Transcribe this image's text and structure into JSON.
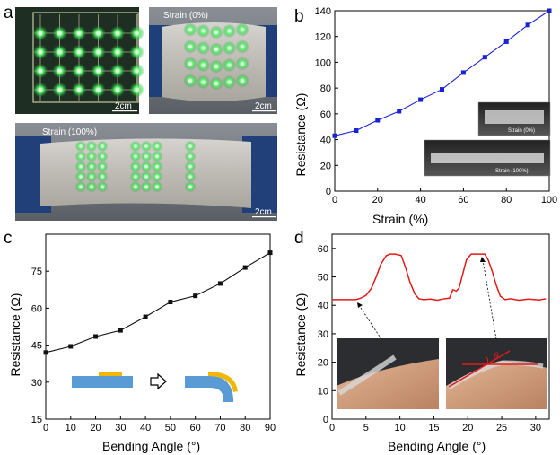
{
  "panels": {
    "a": {
      "label": "a",
      "photo1": {
        "scale_label": "2cm"
      },
      "photo2": {
        "strain_label": "Strain (0%)",
        "scale_label": "2cm"
      },
      "photo3": {
        "strain_label": "Strain (100%)",
        "scale_label": "2cm"
      }
    },
    "b": {
      "label": "b",
      "inset_top_label": "Strain (0%)",
      "inset_bottom_label": "Strain (100%)"
    },
    "c": {
      "label": "c"
    },
    "d": {
      "label": "d",
      "angle_symbol": "θ"
    }
  },
  "colors": {
    "b_series": "#1a22d6",
    "c_series": "#111111",
    "d_series": "#e01b1b",
    "led_green": "#3cff5a",
    "tape_yellow": "#f2b705",
    "film_blue": "#5b9bd5"
  },
  "chart_data": [
    {
      "panel": "b",
      "type": "line",
      "xlabel": "Strain (%)",
      "ylabel": "Resistance (Ω)",
      "xlim": [
        0,
        100
      ],
      "ylim": [
        0,
        140
      ],
      "xticks": [
        0,
        20,
        40,
        60,
        80,
        100
      ],
      "yticks": [
        0,
        20,
        40,
        60,
        80,
        100,
        120,
        140
      ],
      "marker": "square",
      "series": [
        {
          "x": [
            0,
            10,
            20,
            30,
            40,
            50,
            60,
            70,
            80,
            90,
            100
          ],
          "y": [
            43,
            47,
            55,
            62,
            71,
            79,
            92,
            104,
            116,
            129,
            140
          ]
        }
      ]
    },
    {
      "panel": "c",
      "type": "line",
      "xlabel": "Bending Angle (°)",
      "ylabel": "Resistance (Ω)",
      "xlim": [
        0,
        90
      ],
      "ylim": [
        15,
        90
      ],
      "xticks": [
        0,
        10,
        20,
        30,
        40,
        50,
        60,
        70,
        80,
        90
      ],
      "yticks": [
        15,
        30,
        45,
        60,
        75
      ],
      "marker": "square",
      "series": [
        {
          "x": [
            0,
            10,
            20,
            30,
            40,
            50,
            60,
            70,
            80,
            90
          ],
          "y": [
            42,
            44.5,
            48.5,
            51,
            56.5,
            62.5,
            65,
            70,
            76.5,
            82.5
          ]
        }
      ]
    },
    {
      "panel": "d",
      "type": "line",
      "xlabel": "Bending Angle (°)",
      "ylabel": "Resistance (Ω)",
      "xlim": [
        0,
        32
      ],
      "ylim": [
        0,
        65
      ],
      "xticks": [
        0,
        5,
        10,
        15,
        20,
        25,
        30
      ],
      "yticks": [
        0,
        10,
        20,
        30,
        40,
        50,
        60
      ],
      "marker": "none",
      "series": [
        {
          "x": [
            0,
            3.5,
            4.2,
            5,
            5.8,
            6.5,
            7.2,
            8,
            8.6,
            9.3,
            10.2,
            10.8,
            11.5,
            12.2,
            12.8,
            13.5,
            14.5,
            15.5,
            16.5,
            17.3,
            17.8,
            18.3,
            18.7,
            19.2,
            19.8,
            20.5,
            21,
            22.5,
            23,
            23.6,
            24.2,
            24.8,
            25.5,
            26.3,
            27.5,
            29,
            30.5,
            31.5
          ],
          "y": [
            42,
            42,
            42.5,
            43.5,
            46,
            50,
            54.5,
            57.5,
            58,
            58,
            57.5,
            53.5,
            48,
            44,
            42.3,
            42,
            42.2,
            41.8,
            42.3,
            42.5,
            45.5,
            45,
            46,
            50.5,
            56,
            58,
            58,
            58,
            56,
            52,
            47,
            43.2,
            42,
            42.3,
            41.8,
            42.2,
            41.9,
            42.3
          ]
        }
      ]
    }
  ]
}
